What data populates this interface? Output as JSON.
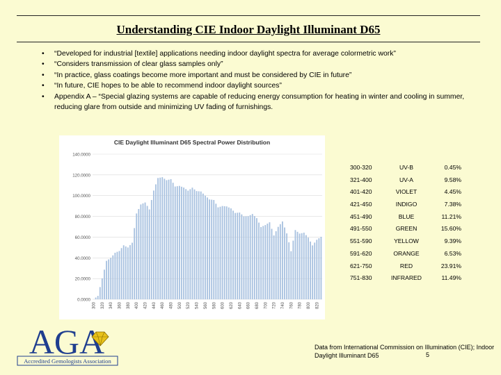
{
  "slide": {
    "title": "Understanding CIE Indoor Daylight Illuminant D65",
    "page_number": "5"
  },
  "bullets": [
    "“Developed for industrial [textile] applications needing indoor daylight spectra for average colormetric work”",
    "“Considers transmission of clear glass samples only”",
    "“In practice, glass coatings become more important and must be considered by CIE in future”",
    "“In future, CIE hopes to be able to recommend indoor daylight sources”",
    "Appendix A – “Special glazing systems are capable of reducing energy consumption for heating in winter and cooling in summer, reducing glare from outside and minimizing UV fading of furnishings."
  ],
  "chart_data": {
    "type": "bar",
    "title": "CIE Daylight Illuminant D65 Spectral Power Distribution",
    "xlabel": "",
    "ylabel": "",
    "ylim": [
      0,
      140
    ],
    "y_ticks": [
      "0.0000",
      "20.0000",
      "40.0000",
      "60.0000",
      "80.0000",
      "100.0000",
      "120.0000",
      "140.0000"
    ],
    "x_start": 300,
    "x_step": 5,
    "x_tick_labels": [
      "300",
      "320",
      "340",
      "360",
      "380",
      "400",
      "420",
      "440",
      "460",
      "480",
      "500",
      "520",
      "540",
      "560",
      "580",
      "600",
      "620",
      "640",
      "660",
      "680",
      "700",
      "720",
      "740",
      "760",
      "780",
      "800",
      "820"
    ],
    "values": [
      0.03,
      1.7,
      3.3,
      11.8,
      20.2,
      28.6,
      37.1,
      38.5,
      39.9,
      42.4,
      44.9,
      45.8,
      46.6,
      49.4,
      52.1,
      51.0,
      50.0,
      52.3,
      54.6,
      68.7,
      82.8,
      87.1,
      91.5,
      92.5,
      93.4,
      90.1,
      86.7,
      95.8,
      104.9,
      110.9,
      117.0,
      117.4,
      117.8,
      116.3,
      114.9,
      115.4,
      115.9,
      112.4,
      108.8,
      109.1,
      109.4,
      108.6,
      107.8,
      106.3,
      104.8,
      106.2,
      107.7,
      106.0,
      104.4,
      104.2,
      104.0,
      102.0,
      100.0,
      98.2,
      96.3,
      96.1,
      95.8,
      92.2,
      88.7,
      89.3,
      90.0,
      89.8,
      89.6,
      88.6,
      87.7,
      85.5,
      83.3,
      83.5,
      83.7,
      81.9,
      80.0,
      80.1,
      80.2,
      81.2,
      82.3,
      80.3,
      78.3,
      74.0,
      69.7,
      70.7,
      71.6,
      73.0,
      74.3,
      68.0,
      61.6,
      65.7,
      69.9,
      72.5,
      75.1,
      69.3,
      63.6,
      55.0,
      46.4,
      56.6,
      66.8,
      65.1,
      63.4,
      63.8,
      64.3,
      61.9,
      59.5,
      55.7,
      52.0,
      54.7,
      57.4,
      58.9,
      60.3
    ]
  },
  "spectral_bands": [
    {
      "range": "300-320",
      "name": "UV-B",
      "percent": "0.45%"
    },
    {
      "range": "321-400",
      "name": "UV-A",
      "percent": "9.58%"
    },
    {
      "range": "401-420",
      "name": "VIOLET",
      "percent": "4.45%"
    },
    {
      "range": "421-450",
      "name": "INDIGO",
      "percent": "7.38%"
    },
    {
      "range": "451-490",
      "name": "BLUE",
      "percent": "11.21%"
    },
    {
      "range": "491-550",
      "name": "GREEN",
      "percent": "15.60%"
    },
    {
      "range": "551-590",
      "name": "YELLOW",
      "percent": "9.39%"
    },
    {
      "range": "591-620",
      "name": "ORANGE",
      "percent": "6.53%"
    },
    {
      "range": "621-750",
      "name": "RED",
      "percent": "23.91%"
    },
    {
      "range": "751-830",
      "name": "INFRARED",
      "percent": "11.49%"
    }
  ],
  "logo": {
    "letters": "AGA",
    "tagline": "Accredited Gemologists Association",
    "icon": "gem-icon"
  },
  "credit": "Data from International Commission on Illumination (CIE); Indoor Daylight Illuminant D65",
  "colors": {
    "background": "#fbfbd2",
    "bar": "#a9c2e0",
    "logo_blue": "#1f3e8f",
    "gem_gold": "#e8c21a"
  }
}
